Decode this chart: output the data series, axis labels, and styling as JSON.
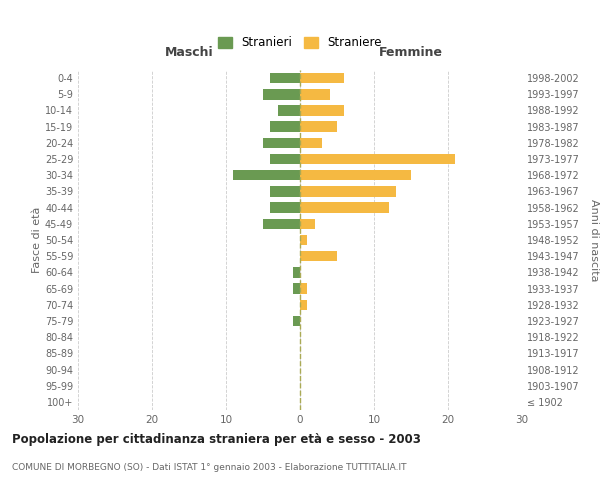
{
  "age_groups": [
    "100+",
    "95-99",
    "90-94",
    "85-89",
    "80-84",
    "75-79",
    "70-74",
    "65-69",
    "60-64",
    "55-59",
    "50-54",
    "45-49",
    "40-44",
    "35-39",
    "30-34",
    "25-29",
    "20-24",
    "15-19",
    "10-14",
    "5-9",
    "0-4"
  ],
  "birth_years": [
    "≤ 1902",
    "1903-1907",
    "1908-1912",
    "1913-1917",
    "1918-1922",
    "1923-1927",
    "1928-1932",
    "1933-1937",
    "1938-1942",
    "1943-1947",
    "1948-1952",
    "1953-1957",
    "1958-1962",
    "1963-1967",
    "1968-1972",
    "1973-1977",
    "1978-1982",
    "1983-1987",
    "1988-1992",
    "1993-1997",
    "1998-2002"
  ],
  "males": [
    0,
    0,
    0,
    0,
    0,
    1,
    0,
    1,
    1,
    0,
    0,
    5,
    4,
    4,
    9,
    4,
    5,
    4,
    3,
    5,
    4
  ],
  "females": [
    0,
    0,
    0,
    0,
    0,
    0,
    1,
    1,
    0,
    5,
    1,
    2,
    12,
    13,
    15,
    21,
    3,
    5,
    6,
    4,
    6
  ],
  "male_color": "#6a9a52",
  "female_color": "#f5b942",
  "legend_male": "Stranieri",
  "legend_female": "Straniere",
  "xlabel_left": "Maschi",
  "xlabel_right": "Femmine",
  "ylabel_left": "Fasce di età",
  "ylabel_right": "Anni di nascita",
  "title": "Popolazione per cittadinanza straniera per età e sesso - 2003",
  "subtitle": "COMUNE DI MORBEGNO (SO) - Dati ISTAT 1° gennaio 2003 - Elaborazione TUTTITALIA.IT",
  "xlim": 30,
  "background_color": "#ffffff",
  "grid_color": "#cccccc",
  "text_color": "#666666",
  "header_color": "#444444"
}
